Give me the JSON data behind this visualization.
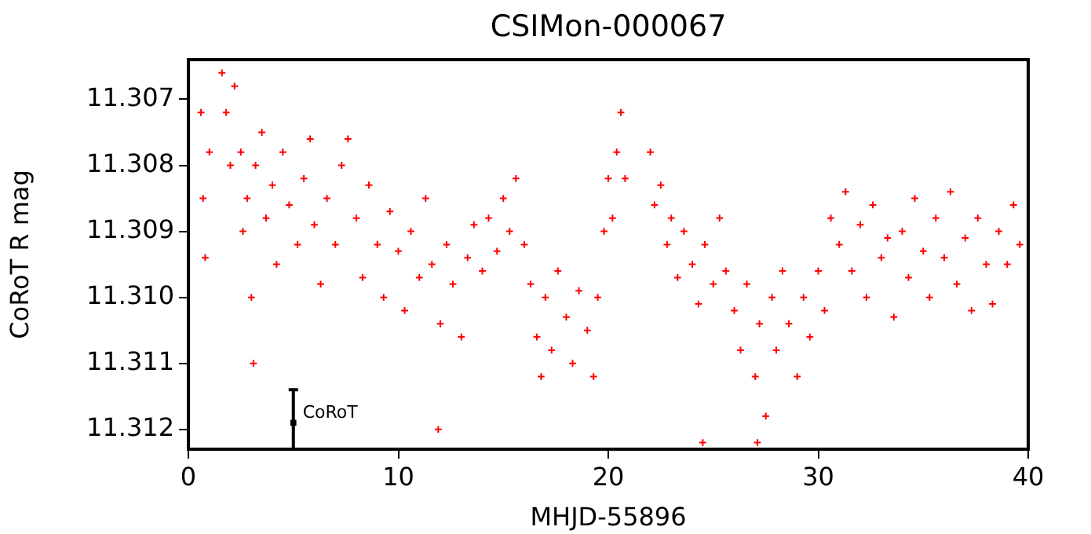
{
  "chart_data": {
    "type": "scatter",
    "title": "CSIMon-000067",
    "xlabel": "MHJD-55896",
    "ylabel": "CoRoT R mag",
    "xlim": [
      0,
      40
    ],
    "xticks": [
      0,
      10,
      20,
      30,
      40
    ],
    "ylim": [
      11.3123,
      11.3064
    ],
    "yticks": [
      11.307,
      11.308,
      11.309,
      {
        "value": 11.31,
        "label": "11.310"
      },
      11.311,
      11.312
    ],
    "grid": false,
    "legend": false,
    "marker": "cross",
    "series": [
      {
        "color": "#ff0000",
        "x": [
          0.6,
          0.7,
          0.8,
          1.0,
          1.6,
          1.8,
          2.0,
          2.2,
          2.5,
          2.6,
          2.8,
          3.0,
          3.1,
          3.2,
          3.5,
          3.7,
          4.0,
          4.2,
          4.5,
          4.8,
          5.2,
          5.5,
          5.8,
          6.0,
          6.3,
          6.6,
          7.0,
          7.3,
          7.6,
          8.0,
          8.3,
          8.6,
          9.0,
          9.3,
          9.6,
          10.0,
          10.3,
          10.6,
          11.0,
          11.3,
          11.6,
          11.9,
          12.0,
          12.3,
          12.6,
          13.0,
          13.3,
          13.6,
          14.0,
          14.3,
          14.7,
          15.0,
          15.3,
          15.6,
          16.0,
          16.3,
          16.6,
          16.8,
          17.0,
          17.3,
          17.6,
          18.0,
          18.3,
          18.6,
          19.0,
          19.3,
          19.5,
          19.8,
          20.0,
          20.2,
          20.4,
          20.6,
          20.8,
          22.0,
          22.2,
          22.5,
          22.8,
          23.0,
          23.3,
          23.6,
          24.0,
          24.3,
          24.5,
          24.6,
          25.0,
          25.3,
          25.6,
          26.0,
          26.3,
          26.6,
          27.0,
          27.1,
          27.2,
          27.5,
          27.8,
          28.0,
          28.3,
          28.6,
          29.0,
          29.3,
          29.6,
          30.0,
          30.3,
          30.6,
          31.0,
          31.3,
          31.6,
          32.0,
          32.3,
          32.6,
          33.0,
          33.3,
          33.6,
          34.0,
          34.3,
          34.6,
          35.0,
          35.3,
          35.6,
          36.0,
          36.3,
          36.6,
          37.0,
          37.3,
          37.6,
          38.0,
          38.3,
          38.6,
          39.0,
          39.3,
          39.6
        ],
        "values": [
          11.3072,
          11.3085,
          11.3094,
          11.3078,
          11.3066,
          11.3072,
          11.308,
          11.3068,
          11.3078,
          11.309,
          11.3085,
          11.31,
          11.311,
          11.308,
          11.3075,
          11.3088,
          11.3083,
          11.3095,
          11.3078,
          11.3086,
          11.3092,
          11.3082,
          11.3076,
          11.3089,
          11.3098,
          11.3085,
          11.3092,
          11.308,
          11.3076,
          11.3088,
          11.3097,
          11.3083,
          11.3092,
          11.31,
          11.3087,
          11.3093,
          11.3102,
          11.309,
          11.3097,
          11.3085,
          11.3095,
          11.312,
          11.3104,
          11.3092,
          11.3098,
          11.3106,
          11.3094,
          11.3089,
          11.3096,
          11.3088,
          11.3093,
          11.3085,
          11.309,
          11.3082,
          11.3092,
          11.3098,
          11.3106,
          11.3112,
          11.31,
          11.3108,
          11.3096,
          11.3103,
          11.311,
          11.3099,
          11.3105,
          11.3112,
          11.31,
          11.309,
          11.3082,
          11.3088,
          11.3078,
          11.3072,
          11.3082,
          11.3078,
          11.3086,
          11.3083,
          11.3092,
          11.3088,
          11.3097,
          11.309,
          11.3095,
          11.3101,
          11.3122,
          11.3092,
          11.3098,
          11.3088,
          11.3096,
          11.3102,
          11.3108,
          11.3098,
          11.3112,
          11.3122,
          11.3104,
          11.3118,
          11.31,
          11.3108,
          11.3096,
          11.3104,
          11.3112,
          11.31,
          11.3106,
          11.3096,
          11.3102,
          11.3088,
          11.3092,
          11.3084,
          11.3096,
          11.3089,
          11.31,
          11.3086,
          11.3094,
          11.3091,
          11.3103,
          11.309,
          11.3097,
          11.3085,
          11.3093,
          11.31,
          11.3088,
          11.3094,
          11.3084,
          11.3098,
          11.3091,
          11.3102,
          11.3088,
          11.3095,
          11.3101,
          11.309,
          11.3095,
          11.3086,
          11.3092
        ]
      },
      {
        "name": "CoRoT",
        "color": "#000000",
        "marker": "square",
        "x": [
          5
        ],
        "values": [
          11.3119
        ],
        "errors": [
          [
            11.3114,
            11.3123
          ]
        ]
      }
    ]
  }
}
